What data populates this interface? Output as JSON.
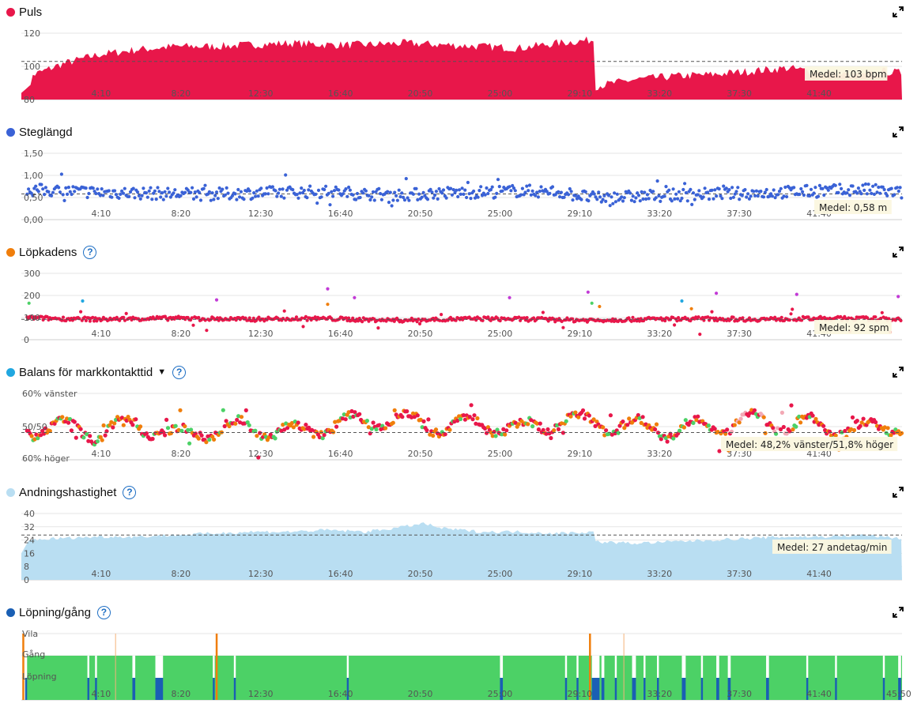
{
  "colors": {
    "puls": "#e8174a",
    "steglangd": "#3a62d6",
    "lopkadens": "#f07e0b",
    "balans": "#21a7e0",
    "andning": "#b9def2",
    "lopning_gang": "#1a5fb4",
    "green": "#4cd166",
    "orange": "#f07e0b",
    "purple": "#c23ad6",
    "pink": "#f3a9b5",
    "cyan": "#21a7e0"
  },
  "x_tick_labels": [
    "4:10",
    "8:20",
    "12:30",
    "16:40",
    "20:50",
    "25:00",
    "29:10",
    "33:20",
    "37:30",
    "41:40"
  ],
  "last_x_tick_label": "45:50",
  "icons": {
    "expand": "expand-arrows-icon",
    "help": "question-circle-icon",
    "caret": "caret-down-icon"
  },
  "panels": {
    "puls": {
      "title": "Puls",
      "mean_label": "Medel: 103 bpm"
    },
    "steglangd": {
      "title": "Steglängd",
      "mean_label": "Medel: 0,58 m"
    },
    "lopkadens": {
      "title": "Löpkadens",
      "help": "?",
      "mean_label": "Medel: 92 spm"
    },
    "balans": {
      "title": "Balans för markkontakttid",
      "caret": "▼",
      "help": "?",
      "mean_label": "Medel: 48,2% vänster/51,8% höger"
    },
    "andning": {
      "title": "Andningshastighet",
      "help": "?",
      "mean_label": "Medel: 27 andetag/min"
    },
    "lopning": {
      "title": "Löpning/gång",
      "help": "?"
    }
  },
  "chart_data": [
    {
      "type": "area",
      "title": "Puls",
      "xlabel": "",
      "ylabel": "",
      "ylim": [
        80,
        120
      ],
      "y_ticks": [
        "80",
        "100",
        "120"
      ],
      "mean": 103,
      "grid": true,
      "x_range_min": [
        0,
        46
      ],
      "series": [
        {
          "x": [
            0,
            2,
            4,
            6,
            8,
            10,
            12,
            14,
            16,
            18,
            20,
            22,
            24,
            26,
            28,
            29.9,
            30.0,
            32,
            34,
            36,
            38,
            40,
            42,
            44,
            45,
            46
          ],
          "values": [
            92,
            101,
            107,
            110,
            112,
            112,
            113,
            114,
            113,
            113,
            114,
            113,
            112,
            111,
            114,
            116,
            88,
            92,
            94,
            95,
            97,
            99,
            96,
            94,
            97,
            96
          ]
        }
      ]
    },
    {
      "type": "scatter",
      "title": "Steglängd",
      "xlabel": "",
      "ylabel": "",
      "ylim": [
        0,
        1.5
      ],
      "y_ticks": [
        "0,00",
        "0,50",
        "1,00",
        "1,50"
      ],
      "mean": 0.58,
      "grid": true,
      "x_range_min": [
        0,
        46
      ],
      "series": [
        {
          "x": [
            0,
            2,
            4,
            6,
            8,
            10,
            12,
            14,
            16,
            18,
            20,
            22,
            24,
            26,
            28,
            30,
            32,
            34,
            36,
            38,
            40,
            42,
            44,
            46
          ],
          "values": [
            0.68,
            0.65,
            0.62,
            0.6,
            0.58,
            0.57,
            0.6,
            0.62,
            0.63,
            0.58,
            0.56,
            0.6,
            0.62,
            0.65,
            0.63,
            0.48,
            0.52,
            0.55,
            0.58,
            0.6,
            0.62,
            0.65,
            0.68,
            0.6
          ]
        }
      ]
    },
    {
      "type": "scatter",
      "title": "Löpkadens",
      "xlabel": "",
      "ylabel": "",
      "ylim": [
        0,
        300
      ],
      "y_ticks": [
        "0",
        "100",
        "200",
        "300"
      ],
      "mean": 92,
      "grid": true,
      "x_range_min": [
        0,
        46
      ],
      "series": [
        {
          "x": [
            0,
            2,
            4,
            6,
            8,
            10,
            12,
            14,
            16,
            18,
            20,
            22,
            24,
            26,
            28,
            30,
            32,
            34,
            36,
            38,
            40,
            42,
            44,
            46
          ],
          "values": [
            100,
            95,
            92,
            95,
            97,
            94,
            92,
            96,
            95,
            90,
            88,
            92,
            95,
            93,
            90,
            88,
            92,
            94,
            95,
            92,
            94,
            96,
            95,
            93
          ]
        }
      ]
    },
    {
      "type": "scatter",
      "title": "Balans för markkontakttid",
      "xlabel": "",
      "ylabel": "",
      "y_ticks": [
        "60% vänster",
        "50/50",
        "60% höger"
      ],
      "ylim": [
        40,
        60
      ],
      "mean_left_percent": 48.2,
      "mean_right_percent": 51.8,
      "grid": true,
      "x_range_min": [
        0,
        46
      ],
      "series": [
        {
          "x": [
            0,
            2,
            4,
            6,
            8,
            10,
            12,
            14,
            16,
            18,
            20,
            22,
            24,
            26,
            28,
            30,
            32,
            34,
            36,
            38,
            40,
            42,
            44,
            46
          ],
          "values": [
            51,
            50,
            52,
            49,
            53,
            51,
            50,
            52,
            50,
            48,
            48,
            50,
            49,
            51,
            48,
            49,
            50,
            51,
            50,
            48,
            49,
            50,
            51,
            49
          ]
        }
      ]
    },
    {
      "type": "area",
      "title": "Andningshastighet",
      "xlabel": "",
      "ylabel": "",
      "ylim": [
        0,
        40
      ],
      "y_ticks": [
        "0",
        "8",
        "16",
        "24",
        "32",
        "40"
      ],
      "mean": 27,
      "grid": true,
      "x_range_min": [
        0,
        46
      ],
      "series": [
        {
          "x": [
            0,
            2,
            4,
            6,
            8,
            10,
            12,
            14,
            16,
            18,
            20,
            21,
            22,
            24,
            26,
            28,
            29.9,
            30.0,
            32,
            34,
            36,
            38,
            40,
            42,
            44,
            46
          ],
          "values": [
            24,
            25,
            26,
            26,
            27,
            28,
            29,
            29,
            30,
            29,
            32,
            34,
            31,
            29,
            29,
            28,
            29,
            23,
            22,
            23,
            24,
            25,
            26,
            26,
            27,
            25
          ]
        }
      ]
    },
    {
      "type": "bar",
      "title": "Löpning/gång",
      "xlabel": "",
      "ylabel": "",
      "y_ticks": [
        "Vila",
        "Gång",
        "Löpning"
      ],
      "categories": [
        "Vila",
        "Gång",
        "Löpning"
      ],
      "grid": true,
      "x_range_min": [
        0,
        46
      ],
      "rest_events_min": [
        0.05,
        10.15,
        29.65
      ],
      "thin_rest_events_min": [
        4.9,
        31.45
      ],
      "walk_gaps_min": [
        [
          0.2,
          0.3
        ],
        [
          3.45,
          3.55
        ],
        [
          3.85,
          3.95
        ],
        [
          5.8,
          5.95
        ],
        [
          7.0,
          7.4
        ],
        [
          10.0,
          10.1
        ],
        [
          11.1,
          11.2
        ],
        [
          17.0,
          17.1
        ],
        [
          25.0,
          25.15
        ],
        [
          28.4,
          28.5
        ],
        [
          29.0,
          29.1
        ],
        [
          29.8,
          30.2
        ],
        [
          30.3,
          30.45
        ],
        [
          31.0,
          31.1
        ],
        [
          31.9,
          32.1
        ],
        [
          32.5,
          32.6
        ],
        [
          33.2,
          33.3
        ],
        [
          34.5,
          34.7
        ],
        [
          35.5,
          35.6
        ],
        [
          36.3,
          36.45
        ],
        [
          36.9,
          37.05
        ],
        [
          38.9,
          39.05
        ],
        [
          41.0,
          41.1
        ],
        [
          42.5,
          42.6
        ],
        [
          45.0,
          45.1
        ],
        [
          45.8,
          45.95
        ]
      ]
    }
  ]
}
